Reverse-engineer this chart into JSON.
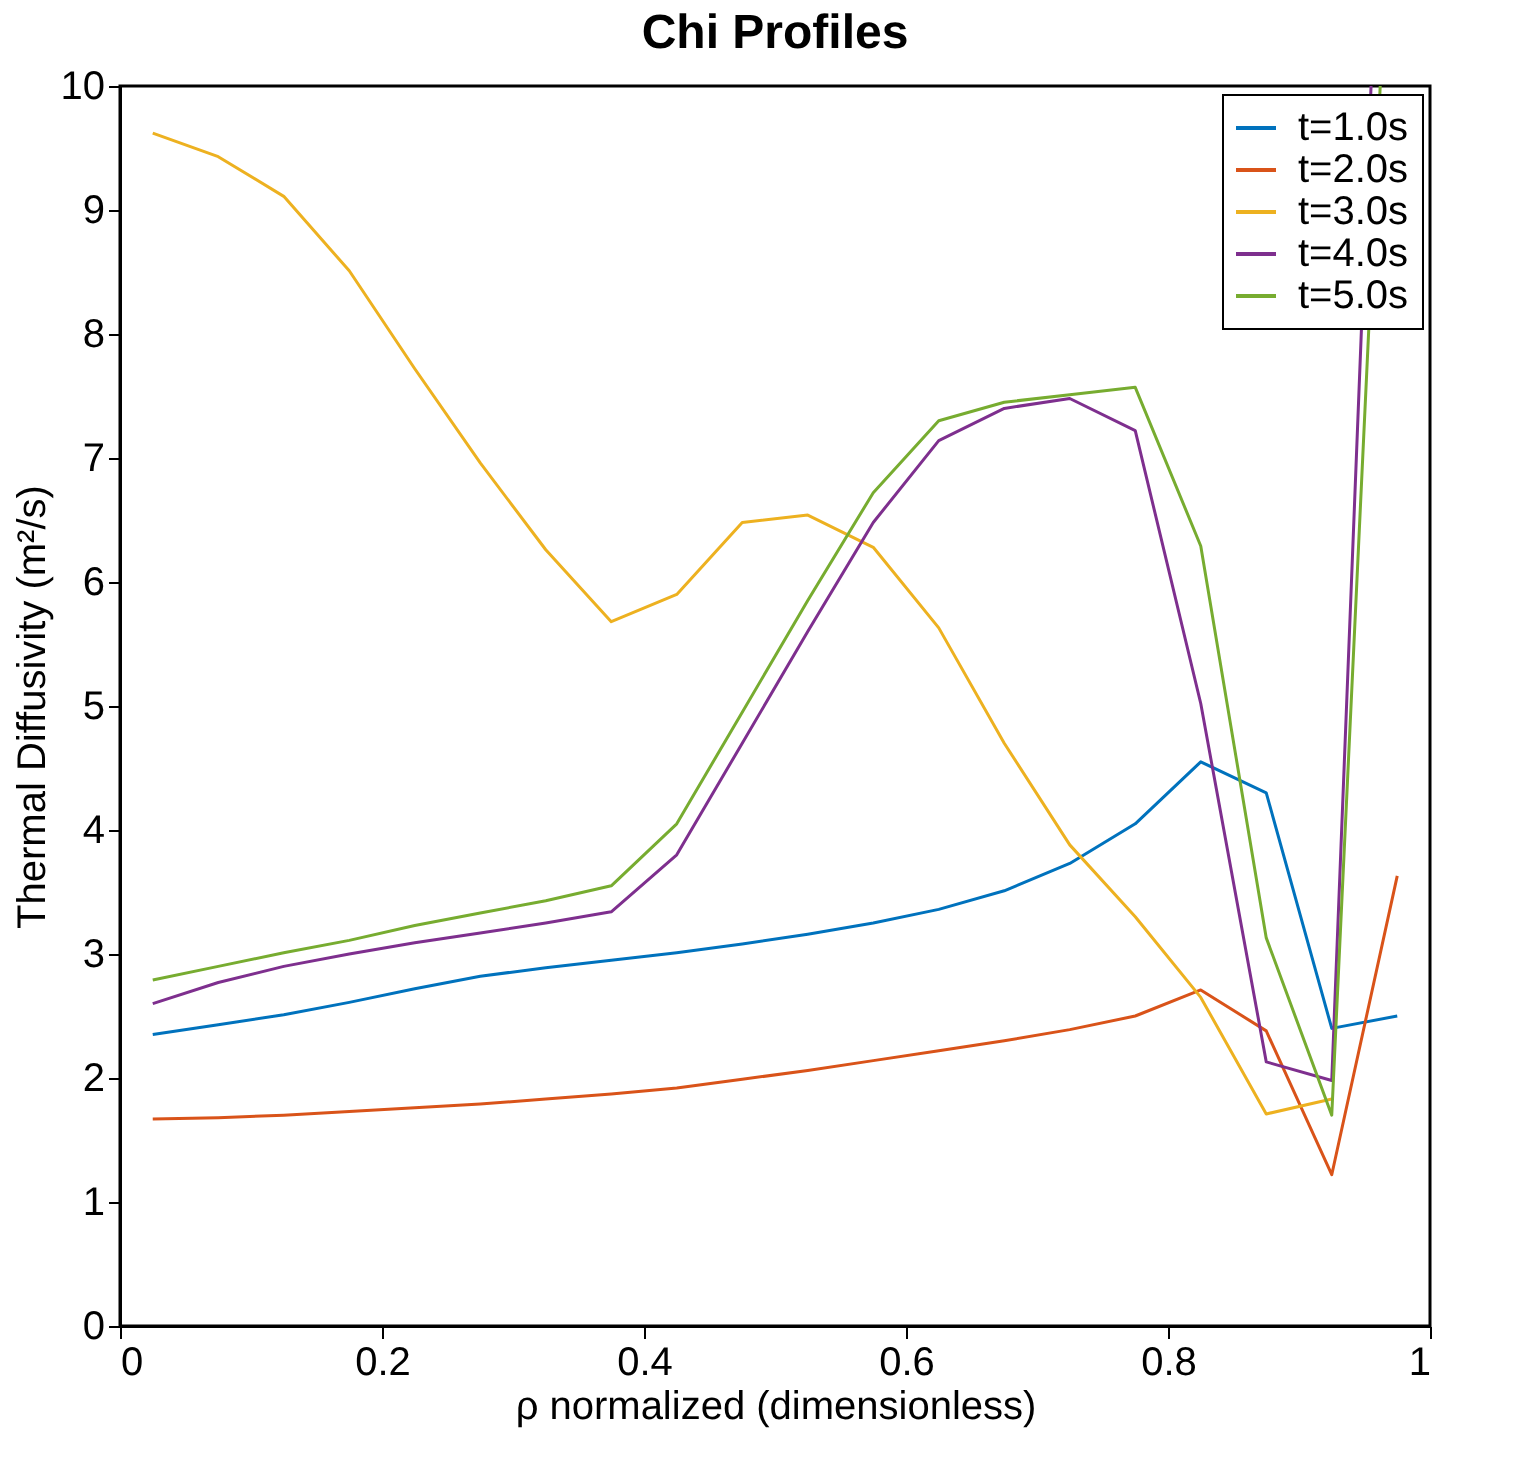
{
  "chart_data": {
    "type": "line",
    "title": "Chi Profiles",
    "xlabel": "ρ normalized (dimensionless)",
    "ylabel": "Thermal Diffusivity (m²/s)",
    "x": [
      0.025,
      0.075,
      0.125,
      0.175,
      0.225,
      0.275,
      0.325,
      0.375,
      0.425,
      0.475,
      0.525,
      0.575,
      0.625,
      0.675,
      0.725,
      0.775,
      0.825,
      0.875,
      0.925,
      0.975
    ],
    "series": [
      {
        "name": "t=1.0s",
        "color": "#0072bd",
        "values": [
          2.35,
          2.43,
          2.51,
          2.61,
          2.72,
          2.82,
          2.89,
          2.95,
          3.01,
          3.08,
          3.16,
          3.25,
          3.36,
          3.51,
          3.73,
          4.05,
          4.55,
          4.3,
          2.4,
          2.5
        ]
      },
      {
        "name": "t=2.0s",
        "color": "#d95319",
        "values": [
          1.67,
          1.68,
          1.7,
          1.73,
          1.76,
          1.79,
          1.83,
          1.87,
          1.92,
          1.99,
          2.06,
          2.14,
          2.22,
          2.3,
          2.39,
          2.5,
          2.71,
          2.38,
          1.22,
          3.63
        ]
      },
      {
        "name": "t=3.0s",
        "color": "#edb120",
        "values": [
          9.62,
          9.43,
          9.11,
          8.51,
          7.72,
          6.96,
          6.26,
          5.68,
          5.9,
          6.48,
          6.54,
          6.28,
          5.63,
          4.7,
          3.88,
          3.3,
          2.65,
          1.71,
          1.83,
          null
        ]
      },
      {
        "name": "t=4.0s",
        "color": "#7e2f8e",
        "x": [
          0.025,
          0.075,
          0.125,
          0.175,
          0.225,
          0.275,
          0.325,
          0.375,
          0.425,
          0.475,
          0.525,
          0.575,
          0.625,
          0.675,
          0.725,
          0.775,
          0.825,
          0.875,
          0.925,
          0.955
        ],
        "values": [
          2.6,
          2.77,
          2.9,
          3.0,
          3.09,
          3.17,
          3.25,
          3.34,
          3.8,
          4.7,
          5.6,
          6.48,
          7.14,
          7.4,
          7.48,
          7.22,
          5.02,
          2.13,
          1.98,
          10
        ]
      },
      {
        "name": "t=5.0s",
        "color": "#77ac30",
        "x": [
          0.025,
          0.075,
          0.125,
          0.175,
          0.225,
          0.275,
          0.325,
          0.375,
          0.425,
          0.475,
          0.525,
          0.575,
          0.625,
          0.675,
          0.725,
          0.775,
          0.825,
          0.875,
          0.925,
          0.962
        ],
        "values": [
          2.79,
          2.9,
          3.01,
          3.11,
          3.23,
          3.33,
          3.43,
          3.55,
          4.05,
          4.95,
          5.85,
          6.72,
          7.3,
          7.45,
          7.51,
          7.57,
          6.29,
          3.13,
          1.7,
          10
        ]
      }
    ],
    "xlim": [
      0,
      1
    ],
    "xticks": [
      0,
      0.2,
      0.4,
      0.6,
      0.8,
      1
    ],
    "ylim": [
      0,
      10
    ],
    "yticks": [
      0,
      1,
      2,
      3,
      4,
      5,
      6,
      7,
      8,
      9,
      10
    ],
    "legend": "top right",
    "grid": false,
    "marker": "none",
    "line_style": "solid"
  }
}
